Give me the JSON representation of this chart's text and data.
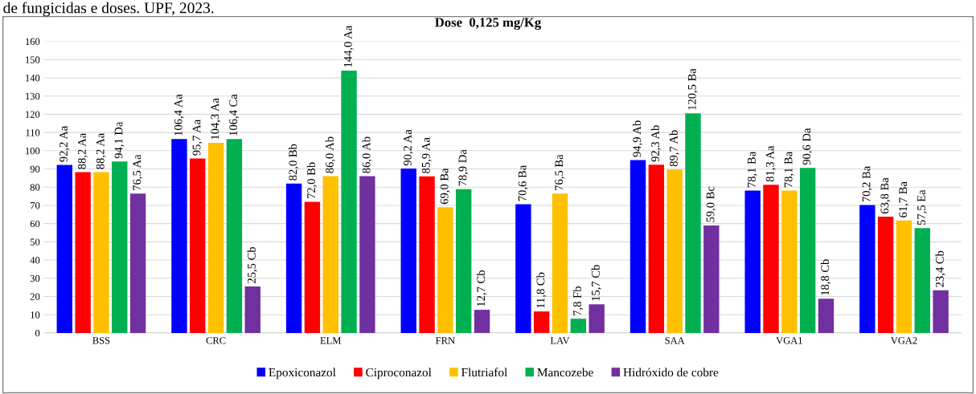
{
  "chart_data": {
    "type": "bar",
    "title": "Dose  0,125 mg/Kg",
    "annotations": [
      "de fungicidas e doses. UPF, 2023."
    ],
    "categories": [
      "BSS",
      "CRC",
      "ELM",
      "FRN",
      "LAV",
      "SAA",
      "VGA1",
      "VGA2"
    ],
    "series": [
      {
        "name": "Epoxiconazol",
        "color": "#0000ff",
        "values": [
          92.2,
          106.4,
          82.0,
          90.2,
          70.6,
          94.9,
          78.1,
          70.2
        ],
        "value_labels": [
          "92,2 Aa",
          "106,4 Aa",
          "82,0 Bb",
          "90,2 Aa",
          "70,6 Ba",
          "94,9 Ab",
          "78,1 Ba",
          "70,2 Ba"
        ]
      },
      {
        "name": "Ciproconazol",
        "color": "#ff0000",
        "values": [
          88.2,
          95.7,
          72.0,
          85.9,
          11.8,
          92.3,
          81.3,
          63.8
        ],
        "value_labels": [
          "88,2 Aa",
          "95,7 Aa",
          "72,0 Bb",
          "85,9 Aa",
          "11,8 Cb",
          "92,3 Ab",
          "81,3 Aa",
          "63,8 Ba"
        ]
      },
      {
        "name": "Flutriafol",
        "color": "#ffc000",
        "values": [
          88.2,
          104.3,
          86.0,
          69.0,
          76.5,
          89.7,
          78.1,
          61.7
        ],
        "value_labels": [
          "88,2 Aa",
          "104,3 Aa",
          "86,0 Ab",
          "69,0 Ba",
          "76,5 Ba",
          "89,7 Ab",
          "78,1 Ba",
          "61,7 Ba"
        ]
      },
      {
        "name": "Mancozebe",
        "color": "#00b050",
        "values": [
          94.1,
          106.4,
          144.0,
          78.9,
          7.8,
          120.5,
          90.6,
          57.5
        ],
        "value_labels": [
          "94,1 Da",
          "106,4 Ca",
          "144,0 Aa",
          "78,9 Da",
          "7,8 Fb",
          "120,5 Ba",
          "90,6 Da",
          "57,5 Ea"
        ]
      },
      {
        "name": "Hidróxido de cobre",
        "color": "#7030a0",
        "values": [
          76.5,
          25.5,
          86.0,
          12.7,
          15.7,
          59.0,
          18.8,
          23.4
        ],
        "value_labels": [
          "76,5 Aa",
          "25,5 Cb",
          "86,0 Ab",
          "12,7 Cb",
          "15,7 Cb",
          "59,0 Bc",
          "18,8 Cb",
          "23,4 Cb"
        ]
      }
    ],
    "ylim": [
      0,
      160
    ],
    "yticks": [
      0,
      10,
      20,
      30,
      40,
      50,
      60,
      70,
      80,
      90,
      100,
      110,
      120,
      130,
      140,
      150,
      160
    ],
    "grid": "y",
    "legend": "bottom"
  }
}
